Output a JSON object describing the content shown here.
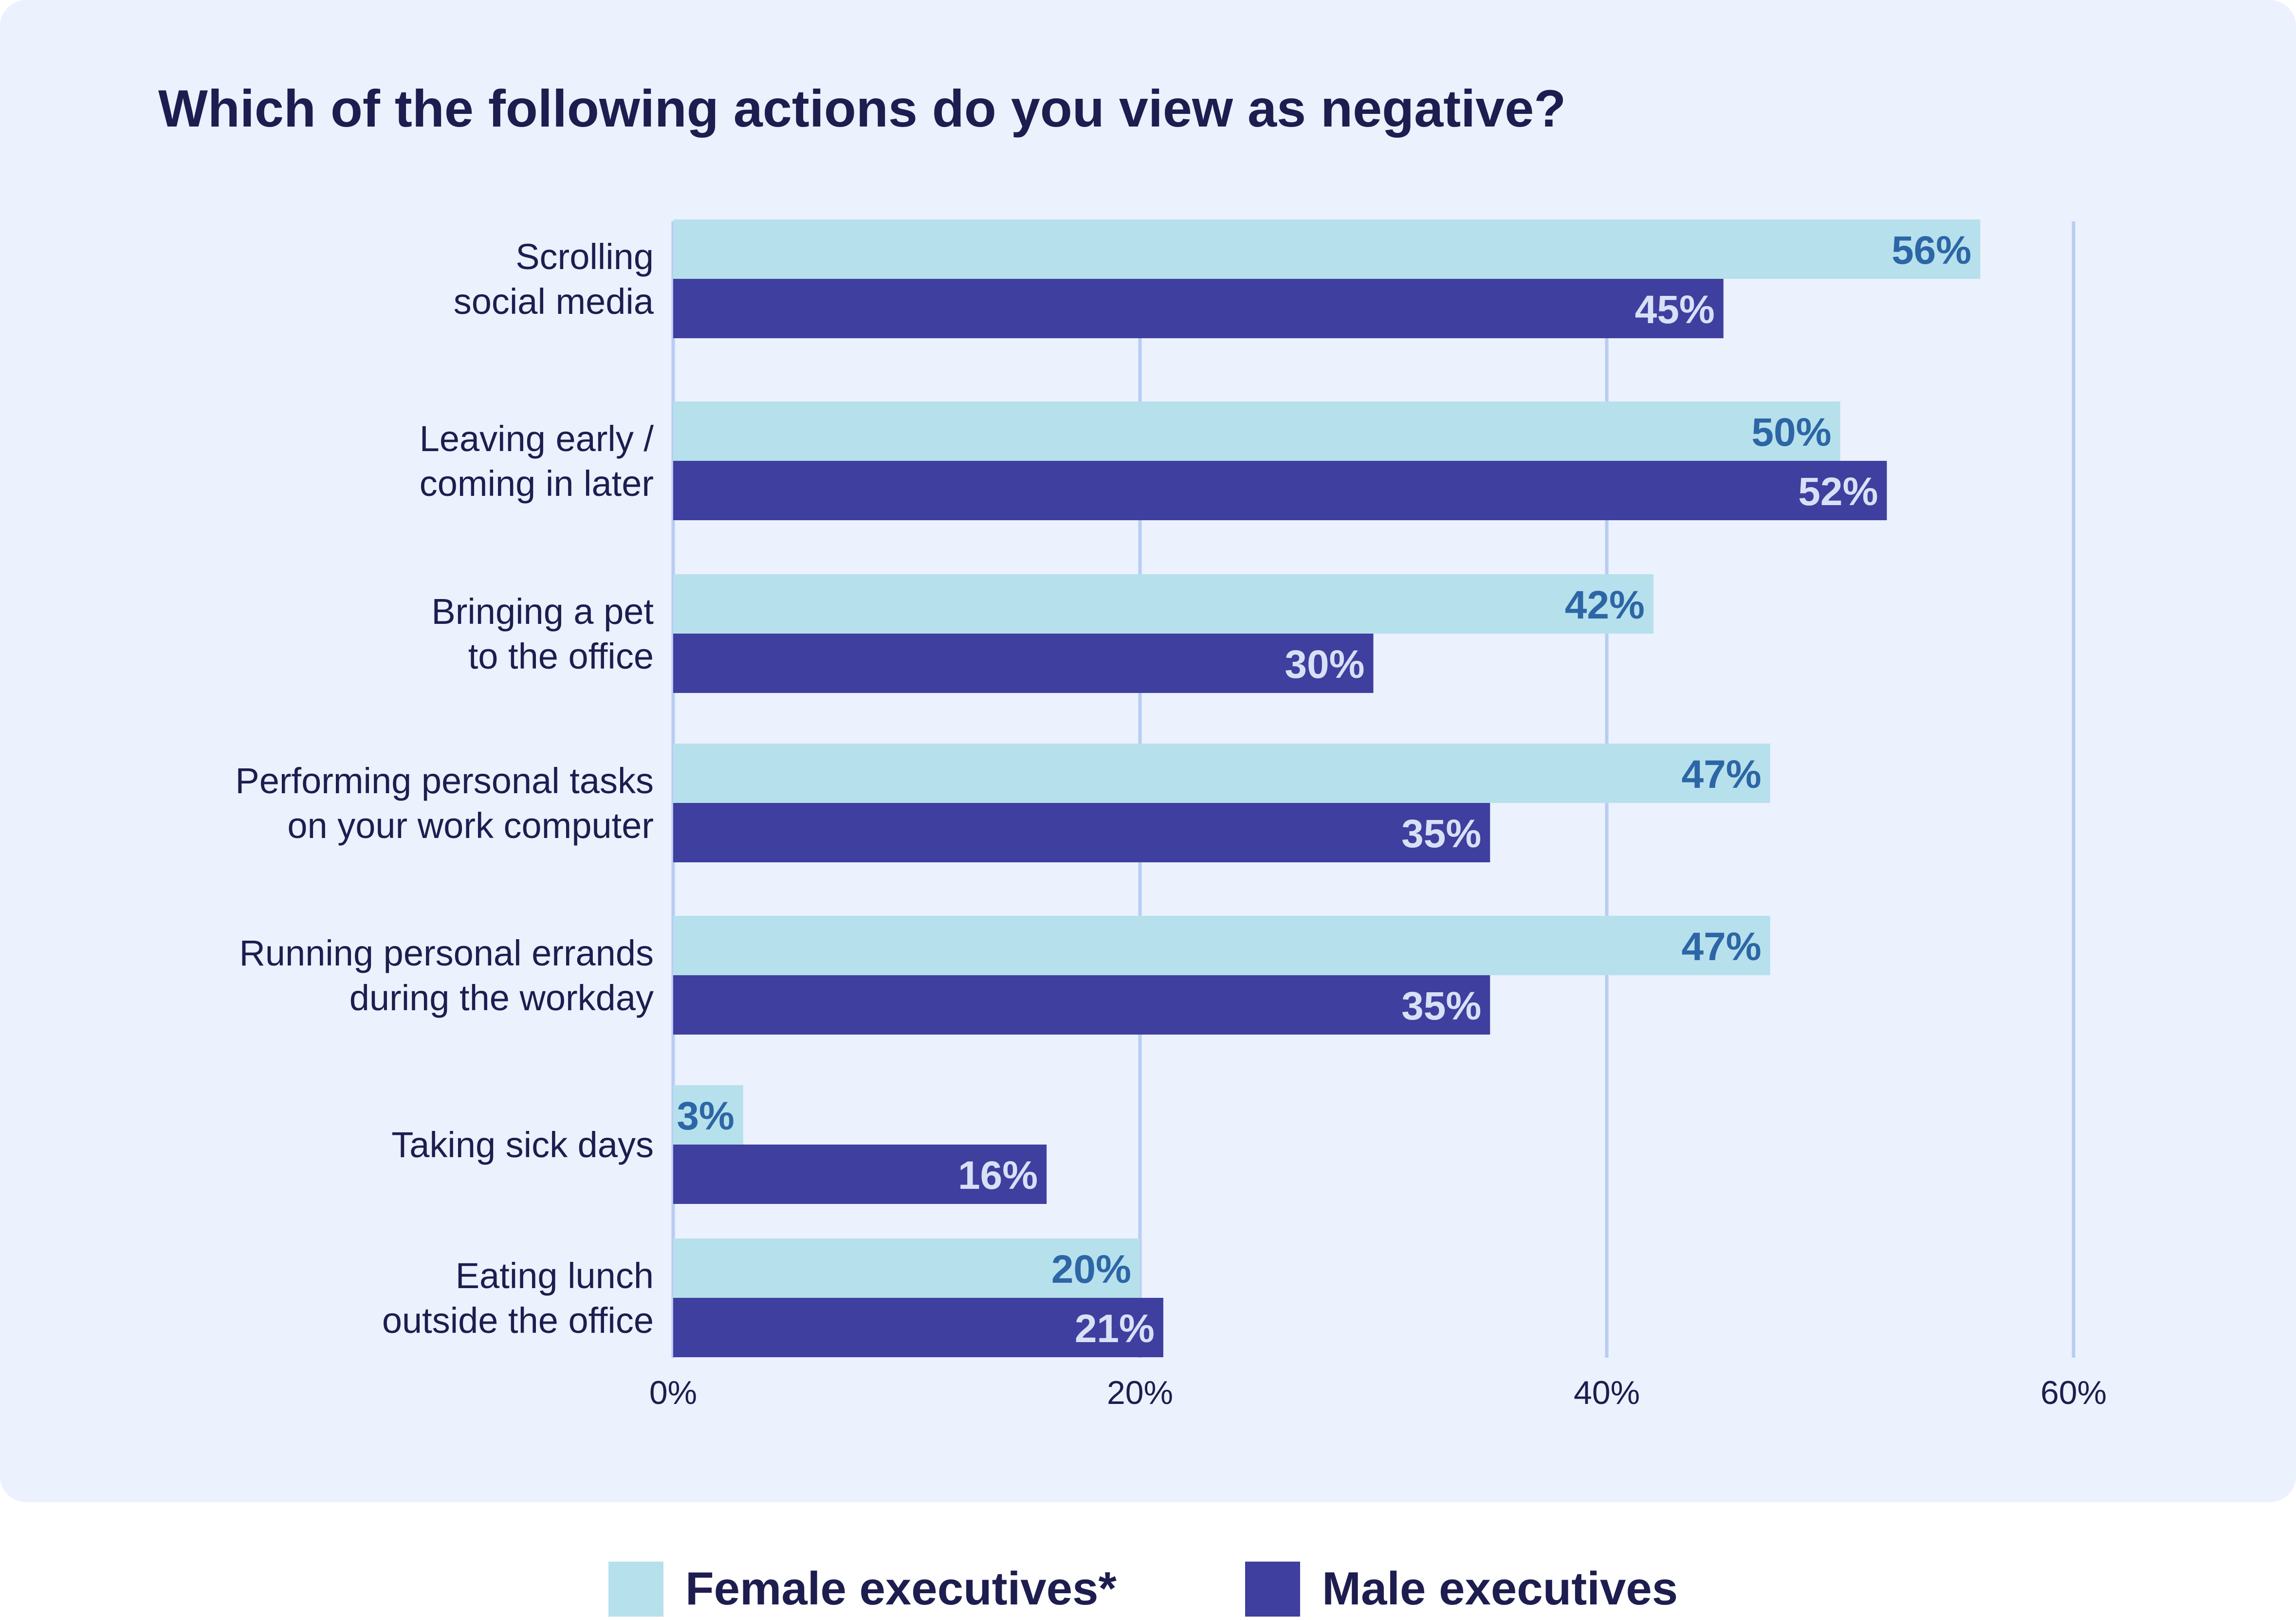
{
  "title": "Which of the following actions do you view as negative?",
  "colors": {
    "background": "#ebf1fd",
    "female": "#b6e0ec",
    "male": "#3f3f9f",
    "female_label": "#2d66a6",
    "male_label": "#d8e0f6",
    "grid": "#b9cdf3",
    "text": "#1d1d4f"
  },
  "legend": [
    {
      "name": "Female executives*",
      "color": "#b6e0ec"
    },
    {
      "name": "Male executives",
      "color": "#3f3f9f"
    }
  ],
  "chart_data": {
    "type": "bar",
    "orientation": "horizontal",
    "title": "Which of the following actions do you view as negative?",
    "categories": [
      [
        "Scrolling",
        "social media"
      ],
      [
        "Leaving early /",
        "coming in later"
      ],
      [
        "Bringing a pet",
        "to the office"
      ],
      [
        "Performing personal tasks",
        "on your work computer"
      ],
      [
        "Running personal errands",
        "during the workday"
      ],
      [
        "Taking sick days"
      ],
      [
        "Eating lunch",
        "outside the office"
      ]
    ],
    "series": [
      {
        "name": "Female executives*",
        "values": [
          56,
          50,
          42,
          47,
          47,
          3,
          20
        ],
        "labels": [
          "56%",
          "50%",
          "42%",
          "47%",
          "47%",
          "3%",
          "20%"
        ]
      },
      {
        "name": "Male executives",
        "values": [
          45,
          52,
          30,
          35,
          35,
          16,
          21
        ],
        "labels": [
          "45%",
          "52%",
          "30%",
          "35%",
          "35%",
          "16%",
          "21%"
        ]
      }
    ],
    "xlim": [
      0,
      60
    ],
    "xticks": [
      0,
      20,
      40,
      60
    ],
    "xtick_labels": [
      "0%",
      "20%",
      "40%",
      "60%"
    ],
    "grid": true,
    "legend_position": "bottom"
  }
}
